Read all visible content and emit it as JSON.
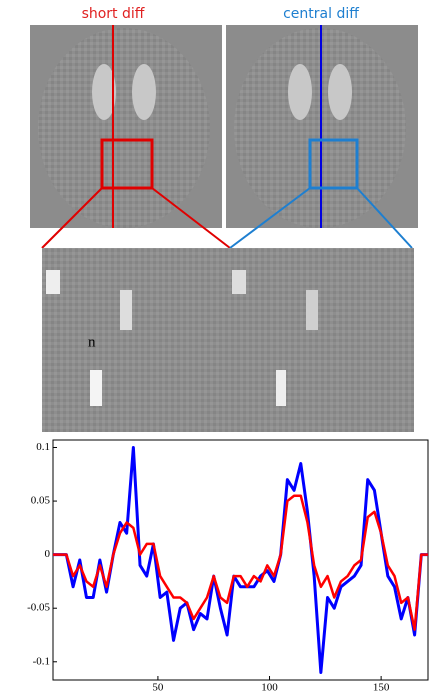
{
  "panels": {
    "left_title": "short diff",
    "right_title": "central diff",
    "side_text": "n"
  },
  "chart_data": {
    "type": "line",
    "x": [
      3,
      6,
      9,
      12,
      15,
      18,
      21,
      24,
      27,
      30,
      33,
      36,
      39,
      42,
      45,
      48,
      51,
      54,
      57,
      60,
      63,
      66,
      69,
      72,
      75,
      78,
      81,
      84,
      87,
      90,
      93,
      96,
      99,
      102,
      105,
      108,
      111,
      114,
      117,
      120,
      123,
      126,
      129,
      132,
      135,
      138,
      141,
      144,
      147,
      150,
      153,
      156,
      159,
      162,
      165,
      168,
      171
    ],
    "series": [
      {
        "color": "#0000ff",
        "values": [
          0,
          0,
          0,
          -0.03,
          -0.005,
          -0.04,
          -0.04,
          -0.005,
          -0.035,
          0,
          0.03,
          0.02,
          0.1,
          -0.01,
          -0.02,
          0.01,
          -0.04,
          -0.035,
          -0.08,
          -0.05,
          -0.045,
          -0.07,
          -0.055,
          -0.06,
          -0.02,
          -0.05,
          -0.075,
          -0.02,
          -0.03,
          -0.03,
          -0.03,
          -0.02,
          -0.015,
          -0.025,
          0,
          0.07,
          0.06,
          0.085,
          0.04,
          -0.02,
          -0.11,
          -0.04,
          -0.05,
          -0.03,
          -0.025,
          -0.02,
          -0.01,
          0.07,
          0.06,
          0.02,
          -0.02,
          -0.03,
          -0.06,
          -0.04,
          -0.075,
          0,
          0
        ]
      },
      {
        "color": "#ff0000",
        "values": [
          0,
          0,
          0,
          -0.02,
          -0.01,
          -0.025,
          -0.03,
          -0.01,
          -0.03,
          0,
          0.02,
          0.03,
          0.025,
          0,
          0.01,
          0.01,
          -0.02,
          -0.03,
          -0.04,
          -0.04,
          -0.045,
          -0.06,
          -0.05,
          -0.04,
          -0.02,
          -0.04,
          -0.045,
          -0.02,
          -0.02,
          -0.03,
          -0.02,
          -0.025,
          -0.01,
          -0.02,
          0,
          0.05,
          0.055,
          0.055,
          0.03,
          -0.01,
          -0.03,
          -0.02,
          -0.04,
          -0.025,
          -0.02,
          -0.01,
          -0.005,
          0.035,
          0.04,
          0.02,
          -0.01,
          -0.02,
          -0.045,
          -0.04,
          -0.07,
          0,
          0
        ]
      }
    ],
    "xlim": [
      3,
      171
    ],
    "xticks": [
      50,
      100,
      150
    ],
    "ylim": [
      -0.117,
      0.107
    ],
    "yticks": [
      -0.1,
      -0.05,
      0,
      0.05,
      0.1
    ]
  }
}
